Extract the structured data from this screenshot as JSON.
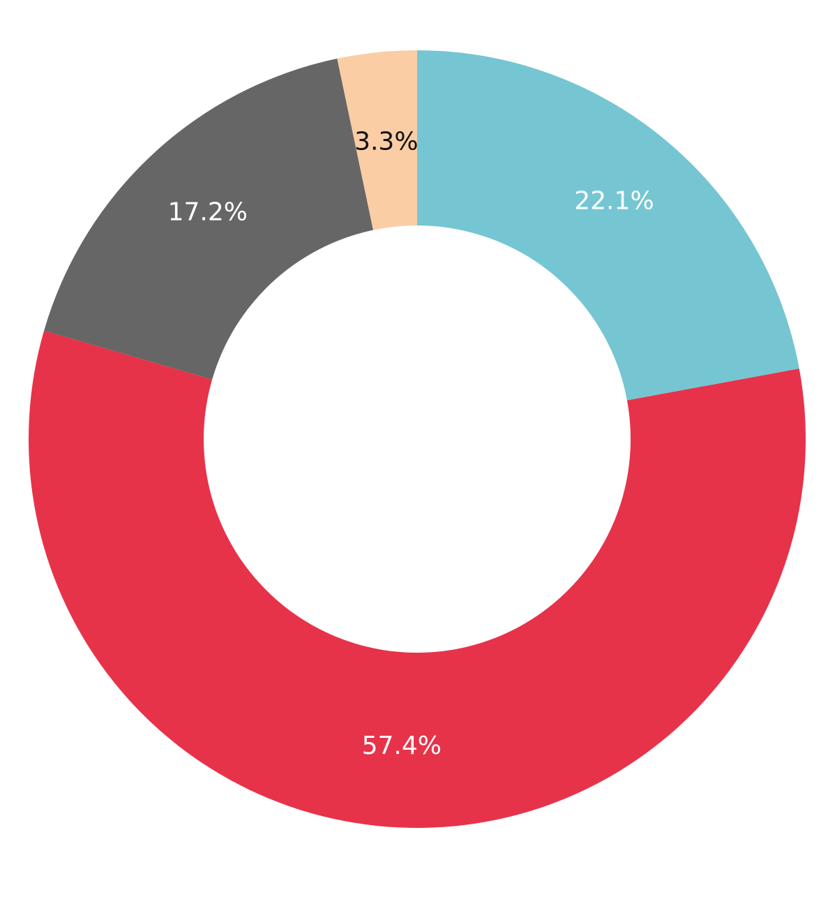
{
  "chart_data": {
    "type": "pie",
    "variant": "donut",
    "title": "",
    "start": "12 o'clock",
    "direction": "clockwise",
    "slices": [
      {
        "value": 22.1,
        "label": "22.1%",
        "color": "#75C6D2",
        "label_color": "#FFFFFF"
      },
      {
        "value": 57.4,
        "label": "57.4%",
        "color": "#E6334A",
        "label_color": "#FFFFFF"
      },
      {
        "value": 17.2,
        "label": "17.2%",
        "color": "#666666",
        "label_color": "#FFFFFF"
      },
      {
        "value": 3.3,
        "label": "3.3%",
        "color": "#FACDA5",
        "label_color": "#111111"
      }
    ],
    "legend": "none"
  }
}
